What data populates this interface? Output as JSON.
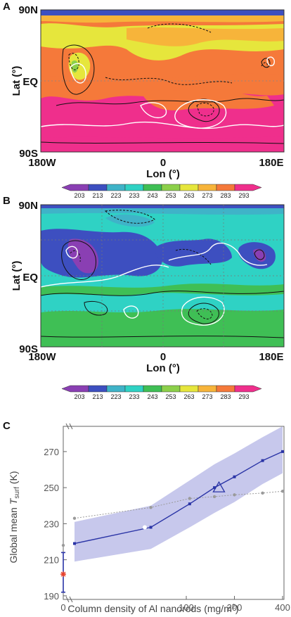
{
  "colors": {
    "c203": "#8a3fb3",
    "c213": "#3d4fc0",
    "c223": "#3fb3c8",
    "c233": "#2fd2c4",
    "c243": "#3fbf55",
    "c253": "#8cd04a",
    "c263": "#e6e63c",
    "c273": "#f7b43a",
    "c283": "#f5793a",
    "c293": "#ef2f8c",
    "band": "#c7c8ec",
    "series_blue": "#2a34a6",
    "series_gray": "#9a9a9a",
    "red_marker": "#e8402a"
  },
  "panel_a": {
    "letter": "A",
    "ylabel": "Lat (°)",
    "xlabel": "Lon (°)",
    "yticks": [
      "90N",
      "EQ",
      "90S"
    ],
    "xticks": [
      "180W",
      "0",
      "180E"
    ]
  },
  "panel_b": {
    "letter": "B",
    "ylabel": "Lat (°)",
    "xlabel": "Lon (°)",
    "yticks": [
      "90N",
      "EQ",
      "90S"
    ],
    "xticks": [
      "180W",
      "0",
      "180E"
    ]
  },
  "colorbar": {
    "ticks": [
      "203",
      "213",
      "223",
      "233",
      "243",
      "253",
      "263",
      "273",
      "283",
      "293"
    ]
  },
  "panel_c": {
    "letter": "C",
    "ylabel_prefix": "Global mean ",
    "ylabel_T": "T",
    "ylabel_sub": "surf",
    "ylabel_unit": " (K)",
    "xlabel": "Column density of Al nanorods (mg/m",
    "xlabel_sup": "2",
    "xlabel_close": ")"
  },
  "chart_data": {
    "type": "line",
    "xlabel": "Column density of Al nanorods (mg/m2)",
    "ylabel": "Global mean T_surf (K)",
    "ylim": [
      188,
      284
    ],
    "yticks": [
      190,
      210,
      230,
      250,
      270
    ],
    "xticks_labels": [
      "0",
      "100",
      "200",
      "400"
    ],
    "baseline": {
      "x": 0,
      "y": 202,
      "err_low": 192,
      "err_high": 214,
      "gray_point": 218
    },
    "series": [
      {
        "x": [
          20,
          60,
          105,
          150,
          200,
          300,
          400
        ],
        "values": [
          219,
          228,
          241,
          250,
          256,
          265,
          270
        ],
        "band_low": [
          209,
          216,
          228,
          236,
          242,
          252,
          258
        ],
        "band_high": [
          231,
          240,
          254,
          263,
          269,
          278,
          284
        ]
      },
      {
        "x": [
          20,
          60,
          105,
          150,
          200,
          300,
          400
        ],
        "values": [
          233,
          239,
          244,
          245,
          246,
          247,
          248
        ]
      }
    ],
    "triangle_marker": {
      "x": 160,
      "y": 250
    },
    "white_marker": {
      "x": 55,
      "y": 228
    }
  }
}
